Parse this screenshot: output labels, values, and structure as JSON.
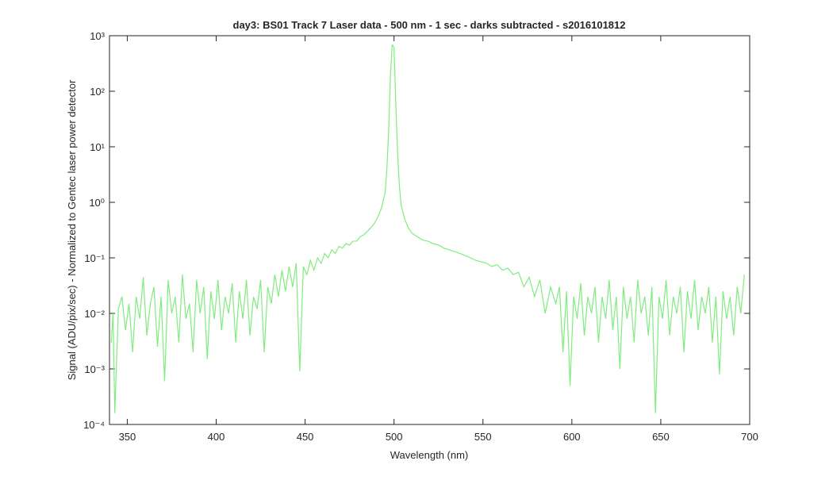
{
  "chart_data": {
    "type": "line",
    "title": "day3: BS01  Track 7 Laser data - 500 nm - 1 sec - darks subtracted - s2016101812",
    "xlabel": "Wavelength (nm)",
    "ylabel": "Signal (ADU/pix/sec) - Normalized to Gentec laser power detector",
    "yscale": "log",
    "xlim": [
      340,
      700
    ],
    "xticks": [
      350,
      400,
      450,
      500,
      550,
      600,
      650,
      700
    ],
    "ylim": [
      0.0001,
      1000
    ],
    "yticks": [
      {
        "value": 0.0001,
        "label": "10⁻⁴"
      },
      {
        "value": 0.001,
        "label": "10⁻³"
      },
      {
        "value": 0.01,
        "label": "10⁻²"
      },
      {
        "value": 0.1,
        "label": "10⁻¹"
      },
      {
        "value": 1,
        "label": "10⁰"
      },
      {
        "value": 10,
        "label": "10¹"
      },
      {
        "value": 100,
        "label": "10²"
      },
      {
        "value": 1000,
        "label": "10³"
      }
    ],
    "x": [
      341,
      342,
      343,
      345,
      347,
      349,
      351,
      353,
      355,
      357,
      359,
      361,
      363,
      365,
      367,
      369,
      371,
      373,
      375,
      377,
      379,
      381,
      383,
      385,
      387,
      389,
      391,
      393,
      395,
      397,
      399,
      401,
      403,
      405,
      407,
      409,
      411,
      413,
      415,
      417,
      419,
      421,
      423,
      425,
      427,
      429,
      431,
      433,
      435,
      437,
      439,
      441,
      443,
      445,
      447,
      449,
      451,
      453,
      455,
      457,
      459,
      461,
      463,
      465,
      467,
      469,
      471,
      473,
      475,
      477,
      479,
      481,
      483,
      485,
      487,
      489,
      491,
      493,
      495,
      496,
      497,
      498,
      499,
      500,
      501,
      502,
      503,
      504,
      506,
      508,
      510,
      513,
      516,
      519,
      522,
      525,
      528,
      531,
      534,
      537,
      540,
      543,
      546,
      549,
      552,
      555,
      558,
      561,
      564,
      567,
      570,
      573,
      576,
      579,
      582,
      585,
      588,
      591,
      593,
      595,
      597,
      599,
      601,
      603,
      605,
      607,
      609,
      611,
      613,
      615,
      617,
      619,
      621,
      623,
      625,
      627,
      629,
      631,
      633,
      635,
      637,
      639,
      641,
      643,
      645,
      647,
      649,
      651,
      653,
      655,
      657,
      659,
      661,
      663,
      665,
      667,
      669,
      671,
      673,
      675,
      677,
      679,
      681,
      683,
      685,
      687,
      689,
      691,
      693,
      695,
      697
    ],
    "series": [
      {
        "color": "#80ec80",
        "values": [
          0.003,
          0.01,
          0.00016,
          0.012,
          0.02,
          0.005,
          0.015,
          0.002,
          0.02,
          0.008,
          0.045,
          0.004,
          0.015,
          0.03,
          0.0025,
          0.02,
          0.0006,
          0.04,
          0.01,
          0.02,
          0.003,
          0.05,
          0.008,
          0.015,
          0.002,
          0.04,
          0.01,
          0.03,
          0.0015,
          0.025,
          0.008,
          0.04,
          0.005,
          0.02,
          0.01,
          0.035,
          0.003,
          0.025,
          0.008,
          0.04,
          0.004,
          0.02,
          0.012,
          0.04,
          0.002,
          0.03,
          0.015,
          0.05,
          0.02,
          0.06,
          0.025,
          0.07,
          0.03,
          0.08,
          0.0009,
          0.07,
          0.05,
          0.09,
          0.06,
          0.1,
          0.08,
          0.12,
          0.1,
          0.14,
          0.12,
          0.16,
          0.15,
          0.18,
          0.17,
          0.2,
          0.2,
          0.24,
          0.26,
          0.3,
          0.35,
          0.42,
          0.55,
          0.8,
          1.5,
          4,
          20,
          200,
          700,
          600,
          60,
          8,
          2,
          0.9,
          0.5,
          0.35,
          0.28,
          0.24,
          0.21,
          0.2,
          0.18,
          0.17,
          0.15,
          0.14,
          0.13,
          0.12,
          0.11,
          0.1,
          0.09,
          0.085,
          0.08,
          0.07,
          0.075,
          0.06,
          0.065,
          0.05,
          0.055,
          0.03,
          0.045,
          0.02,
          0.04,
          0.01,
          0.03,
          0.015,
          0.03,
          0.002,
          0.025,
          0.0005,
          0.02,
          0.008,
          0.035,
          0.004,
          0.02,
          0.01,
          0.03,
          0.003,
          0.02,
          0.008,
          0.04,
          0.005,
          0.02,
          0.001,
          0.03,
          0.008,
          0.02,
          0.003,
          0.04,
          0.01,
          0.02,
          0.004,
          0.03,
          0.00016,
          0.02,
          0.008,
          0.04,
          0.004,
          0.02,
          0.01,
          0.03,
          0.002,
          0.025,
          0.008,
          0.04,
          0.005,
          0.02,
          0.01,
          0.03,
          0.003,
          0.02,
          0.0008,
          0.025,
          0.008,
          0.02,
          0.004,
          0.03,
          0.01,
          0.05
        ]
      }
    ]
  }
}
